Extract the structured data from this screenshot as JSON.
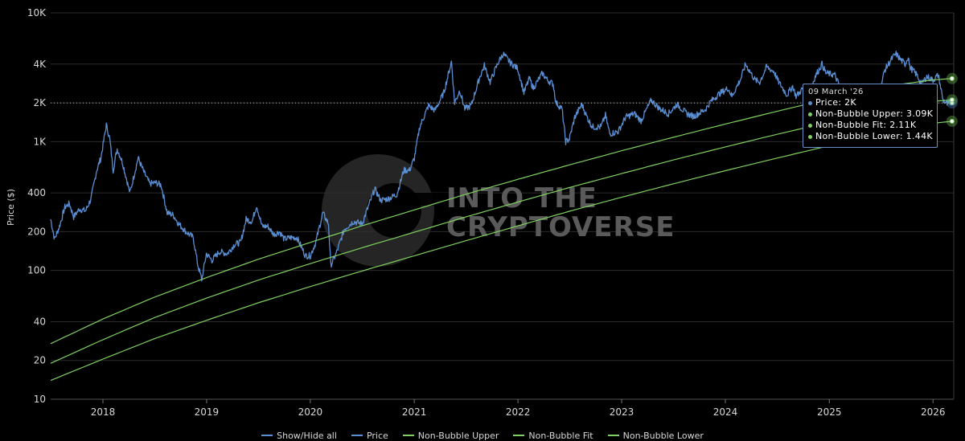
{
  "chart_data": {
    "type": "line",
    "ylabel": "Price ($)",
    "yscale": "log",
    "ylim": [
      10,
      10000
    ],
    "xlim": [
      "2017-07-01",
      "2026-03-15"
    ],
    "y_ticks": [
      {
        "value": 10,
        "label": "10"
      },
      {
        "value": 20,
        "label": "20"
      },
      {
        "value": 40,
        "label": "40"
      },
      {
        "value": 100,
        "label": "100"
      },
      {
        "value": 200,
        "label": "200"
      },
      {
        "value": 400,
        "label": "400"
      },
      {
        "value": 1000,
        "label": "1K"
      },
      {
        "value": 2000,
        "label": "2K"
      },
      {
        "value": 4000,
        "label": "4K"
      },
      {
        "value": 10000,
        "label": "10K"
      }
    ],
    "x_ticks": [
      {
        "value": "2018-01-01",
        "label": "2018"
      },
      {
        "value": "2019-01-01",
        "label": "2019"
      },
      {
        "value": "2020-01-01",
        "label": "2020"
      },
      {
        "value": "2021-01-01",
        "label": "2021"
      },
      {
        "value": "2022-01-01",
        "label": "2022"
      },
      {
        "value": "2023-01-01",
        "label": "2023"
      },
      {
        "value": "2024-01-01",
        "label": "2024"
      },
      {
        "value": "2025-01-01",
        "label": "2025"
      },
      {
        "value": "2026-01-01",
        "label": "2026"
      }
    ],
    "grid": true,
    "series": [
      {
        "name": "Price",
        "color": "#5b8fd4",
        "points": [
          [
            "2017-07-01",
            250
          ],
          [
            "2017-07-15",
            175
          ],
          [
            "2017-08-01",
            220
          ],
          [
            "2017-08-20",
            310
          ],
          [
            "2017-09-05",
            330
          ],
          [
            "2017-09-20",
            260
          ],
          [
            "2017-10-10",
            300
          ],
          [
            "2017-11-01",
            290
          ],
          [
            "2017-11-20",
            360
          ],
          [
            "2017-12-10",
            600
          ],
          [
            "2017-12-25",
            750
          ],
          [
            "2018-01-13",
            1350
          ],
          [
            "2018-01-25",
            1050
          ],
          [
            "2018-02-06",
            600
          ],
          [
            "2018-02-20",
            880
          ],
          [
            "2018-03-10",
            700
          ],
          [
            "2018-04-06",
            400
          ],
          [
            "2018-05-05",
            750
          ],
          [
            "2018-05-25",
            580
          ],
          [
            "2018-06-15",
            470
          ],
          [
            "2018-07-05",
            480
          ],
          [
            "2018-07-25",
            460
          ],
          [
            "2018-08-15",
            280
          ],
          [
            "2018-09-05",
            270
          ],
          [
            "2018-09-25",
            230
          ],
          [
            "2018-10-20",
            200
          ],
          [
            "2018-11-15",
            180
          ],
          [
            "2018-12-01",
            110
          ],
          [
            "2018-12-15",
            85
          ],
          [
            "2018-12-31",
            135
          ],
          [
            "2019-01-20",
            120
          ],
          [
            "2019-02-15",
            140
          ],
          [
            "2019-03-15",
            135
          ],
          [
            "2019-04-10",
            160
          ],
          [
            "2019-05-01",
            165
          ],
          [
            "2019-05-20",
            250
          ],
          [
            "2019-06-10",
            240
          ],
          [
            "2019-06-26",
            320
          ],
          [
            "2019-07-15",
            220
          ],
          [
            "2019-08-05",
            220
          ],
          [
            "2019-08-25",
            190
          ],
          [
            "2019-09-15",
            200
          ],
          [
            "2019-10-01",
            175
          ],
          [
            "2019-10-25",
            180
          ],
          [
            "2019-11-15",
            180
          ],
          [
            "2019-12-15",
            130
          ],
          [
            "2020-01-01",
            130
          ],
          [
            "2020-01-20",
            165
          ],
          [
            "2020-02-14",
            280
          ],
          [
            "2020-03-05",
            230
          ],
          [
            "2020-03-13",
            110
          ],
          [
            "2020-04-01",
            135
          ],
          [
            "2020-04-30",
            210
          ],
          [
            "2020-06-01",
            240
          ],
          [
            "2020-07-01",
            230
          ],
          [
            "2020-07-25",
            320
          ],
          [
            "2020-08-15",
            430
          ],
          [
            "2020-09-05",
            350
          ],
          [
            "2020-10-01",
            360
          ],
          [
            "2020-11-01",
            390
          ],
          [
            "2020-11-25",
            600
          ],
          [
            "2020-12-15",
            600
          ],
          [
            "2021-01-01",
            740
          ],
          [
            "2021-01-20",
            1300
          ],
          [
            "2021-02-20",
            1900
          ],
          [
            "2021-03-15",
            1750
          ],
          [
            "2021-04-15",
            2400
          ],
          [
            "2021-05-12",
            4200
          ],
          [
            "2021-05-23",
            2000
          ],
          [
            "2021-06-10",
            2500
          ],
          [
            "2021-06-28",
            1800
          ],
          [
            "2021-07-20",
            1900
          ],
          [
            "2021-08-20",
            3200
          ],
          [
            "2021-09-05",
            3900
          ],
          [
            "2021-09-25",
            2900
          ],
          [
            "2021-10-25",
            4200
          ],
          [
            "2021-11-10",
            4800
          ],
          [
            "2021-12-05",
            4100
          ],
          [
            "2021-12-31",
            3700
          ],
          [
            "2022-01-22",
            2400
          ],
          [
            "2022-02-10",
            3100
          ],
          [
            "2022-02-24",
            2600
          ],
          [
            "2022-03-28",
            3400
          ],
          [
            "2022-04-15",
            3000
          ],
          [
            "2022-05-05",
            2800
          ],
          [
            "2022-05-15",
            2000
          ],
          [
            "2022-06-05",
            1800
          ],
          [
            "2022-06-18",
            1000
          ],
          [
            "2022-07-01",
            1050
          ],
          [
            "2022-07-20",
            1550
          ],
          [
            "2022-08-14",
            1950
          ],
          [
            "2022-09-01",
            1550
          ],
          [
            "2022-09-20",
            1300
          ],
          [
            "2022-10-20",
            1300
          ],
          [
            "2022-11-05",
            1600
          ],
          [
            "2022-11-20",
            1150
          ],
          [
            "2022-12-20",
            1200
          ],
          [
            "2023-01-15",
            1550
          ],
          [
            "2023-02-15",
            1650
          ],
          [
            "2023-03-10",
            1450
          ],
          [
            "2023-04-15",
            2100
          ],
          [
            "2023-05-15",
            1800
          ],
          [
            "2023-06-15",
            1650
          ],
          [
            "2023-07-15",
            1950
          ],
          [
            "2023-08-18",
            1650
          ],
          [
            "2023-09-12",
            1570
          ],
          [
            "2023-10-23",
            1780
          ],
          [
            "2023-11-10",
            2050
          ],
          [
            "2023-12-10",
            2350
          ],
          [
            "2024-01-11",
            2600
          ],
          [
            "2024-01-24",
            2250
          ],
          [
            "2024-02-25",
            3100
          ],
          [
            "2024-03-12",
            4000
          ],
          [
            "2024-04-15",
            3000
          ],
          [
            "2024-05-01",
            2900
          ],
          [
            "2024-05-25",
            3800
          ],
          [
            "2024-06-20",
            3500
          ],
          [
            "2024-07-05",
            2950
          ],
          [
            "2024-08-05",
            2300
          ],
          [
            "2024-08-25",
            2700
          ],
          [
            "2024-09-06",
            2250
          ],
          [
            "2024-10-01",
            2600
          ],
          [
            "2024-10-25",
            2500
          ],
          [
            "2024-11-12",
            3200
          ],
          [
            "2024-12-06",
            4000
          ],
          [
            "2024-12-20",
            3400
          ],
          [
            "2025-01-20",
            3300
          ],
          [
            "2025-02-03",
            2800
          ],
          [
            "2025-02-25",
            2300
          ],
          [
            "2025-03-10",
            2000
          ],
          [
            "2025-04-09",
            1450
          ],
          [
            "2025-05-10",
            2500
          ],
          [
            "2025-06-10",
            2700
          ],
          [
            "2025-06-22",
            2200
          ],
          [
            "2025-07-15",
            3600
          ],
          [
            "2025-08-12",
            4500
          ],
          [
            "2025-08-24",
            4800
          ],
          [
            "2025-09-10",
            4300
          ],
          [
            "2025-09-25",
            4000
          ],
          [
            "2025-10-06",
            4600
          ],
          [
            "2025-10-11",
            3800
          ],
          [
            "2025-11-05",
            3300
          ],
          [
            "2025-11-21",
            2800
          ],
          [
            "2025-12-10",
            3200
          ],
          [
            "2026-01-01",
            3000
          ],
          [
            "2026-01-20",
            3300
          ],
          [
            "2026-02-05",
            2100
          ],
          [
            "2026-02-20",
            1950
          ],
          [
            "2026-03-09",
            2000
          ]
        ]
      },
      {
        "name": "Non-Bubble Upper",
        "color": "#7fd060",
        "points": [
          [
            "2017-07-01",
            27
          ],
          [
            "2018-01-01",
            42
          ],
          [
            "2018-07-01",
            62
          ],
          [
            "2019-01-01",
            88
          ],
          [
            "2019-07-01",
            122
          ],
          [
            "2020-01-01",
            165
          ],
          [
            "2020-07-01",
            222
          ],
          [
            "2021-01-01",
            295
          ],
          [
            "2021-07-01",
            390
          ],
          [
            "2022-01-01",
            510
          ],
          [
            "2022-07-01",
            660
          ],
          [
            "2023-01-01",
            850
          ],
          [
            "2023-07-01",
            1080
          ],
          [
            "2024-01-01",
            1370
          ],
          [
            "2024-07-01",
            1720
          ],
          [
            "2025-01-01",
            2150
          ],
          [
            "2025-07-01",
            2650
          ],
          [
            "2026-01-01",
            3020
          ],
          [
            "2026-03-09",
            3090
          ]
        ]
      },
      {
        "name": "Non-Bubble Fit",
        "color": "#7fd060",
        "points": [
          [
            "2017-07-01",
            19
          ],
          [
            "2018-01-01",
            29
          ],
          [
            "2018-07-01",
            43
          ],
          [
            "2019-01-01",
            61
          ],
          [
            "2019-07-01",
            84
          ],
          [
            "2020-01-01",
            113
          ],
          [
            "2020-07-01",
            150
          ],
          [
            "2021-01-01",
            198
          ],
          [
            "2021-07-01",
            260
          ],
          [
            "2022-01-01",
            340
          ],
          [
            "2022-07-01",
            440
          ],
          [
            "2023-01-01",
            565
          ],
          [
            "2023-07-01",
            720
          ],
          [
            "2024-01-01",
            910
          ],
          [
            "2024-07-01",
            1140
          ],
          [
            "2025-01-01",
            1420
          ],
          [
            "2025-07-01",
            1750
          ],
          [
            "2026-01-01",
            2060
          ],
          [
            "2026-03-09",
            2110
          ]
        ]
      },
      {
        "name": "Non-Bubble Lower",
        "color": "#7fd060",
        "points": [
          [
            "2017-07-01",
            14
          ],
          [
            "2018-01-01",
            20.5
          ],
          [
            "2018-07-01",
            29.5
          ],
          [
            "2019-01-01",
            41
          ],
          [
            "2019-07-01",
            56
          ],
          [
            "2020-01-01",
            75
          ],
          [
            "2020-07-01",
            99
          ],
          [
            "2021-01-01",
            130
          ],
          [
            "2021-07-01",
            170
          ],
          [
            "2022-01-01",
            222
          ],
          [
            "2022-07-01",
            288
          ],
          [
            "2023-01-01",
            370
          ],
          [
            "2023-07-01",
            470
          ],
          [
            "2024-01-01",
            595
          ],
          [
            "2024-07-01",
            745
          ],
          [
            "2025-01-01",
            930
          ],
          [
            "2025-07-01",
            1150
          ],
          [
            "2026-01-01",
            1390
          ],
          [
            "2026-03-09",
            1440
          ]
        ]
      }
    ],
    "crosshair": {
      "date": "2026-03-09",
      "price": 2000
    },
    "tooltip": {
      "date": "09 March '26",
      "rows": [
        {
          "label": "Price: 2K",
          "color": "#5b8fd4"
        },
        {
          "label": "Non-Bubble Upper: 3.09K",
          "color": "#7fd060"
        },
        {
          "label": "Non-Bubble Fit: 2.11K",
          "color": "#7fd060"
        },
        {
          "label": "Non-Bubble Lower: 1.44K",
          "color": "#7fd060"
        }
      ]
    },
    "watermark": {
      "line1": "INTO THE",
      "line2": "CRYPTOVERSE"
    }
  },
  "legend": {
    "items": [
      {
        "label": "Show/Hide all",
        "color": "#5b8fd4"
      },
      {
        "label": "Price",
        "color": "#5b8fd4"
      },
      {
        "label": "Non-Bubble Upper",
        "color": "#7fd060"
      },
      {
        "label": "Non-Bubble Fit",
        "color": "#7fd060"
      },
      {
        "label": "Non-Bubble Lower",
        "color": "#7fd060"
      }
    ]
  }
}
